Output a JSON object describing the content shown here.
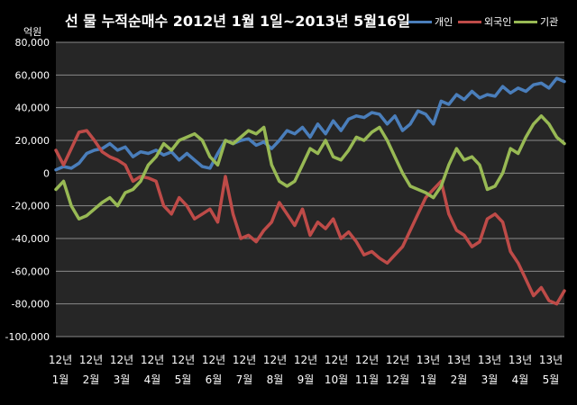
{
  "chart_data": {
    "type": "line",
    "title": "선 물 누적순매수 2012년 1월 1일~2013년 5월16일",
    "ylabel": "억원",
    "ylim": [
      -100000,
      80000
    ],
    "yticks": [
      80000,
      60000,
      40000,
      20000,
      0,
      -20000,
      -40000,
      -60000,
      -80000,
      -100000
    ],
    "ytick_labels": [
      "80,000",
      "60,000",
      "40,000",
      "20,000",
      "0",
      "-20,000",
      "-40,000",
      "-60,000",
      "-80,000",
      "-100,000"
    ],
    "x_tick_labels": [
      [
        "12년",
        "1월"
      ],
      [
        "12년",
        "2월"
      ],
      [
        "12년",
        "3월"
      ],
      [
        "12년",
        "4월"
      ],
      [
        "12년",
        "5월"
      ],
      [
        "12년",
        "6월"
      ],
      [
        "12년",
        "7월"
      ],
      [
        "12년",
        "8월"
      ],
      [
        "12년",
        "9월"
      ],
      [
        "12년",
        "10월"
      ],
      [
        "12년",
        "11월"
      ],
      [
        "12년",
        "12월"
      ],
      [
        "13년",
        "1월"
      ],
      [
        "13년",
        "2월"
      ],
      [
        "13년",
        "3월"
      ],
      [
        "13년",
        "4월"
      ],
      [
        "13년",
        "5월"
      ]
    ],
    "grid": true,
    "legend_position": "top-right",
    "x": [
      0,
      0.25,
      0.5,
      0.75,
      1,
      1.25,
      1.5,
      1.75,
      2,
      2.25,
      2.5,
      2.75,
      3,
      3.25,
      3.5,
      3.75,
      4,
      4.25,
      4.5,
      4.75,
      5,
      5.25,
      5.5,
      5.75,
      6,
      6.25,
      6.5,
      6.75,
      7,
      7.25,
      7.5,
      7.75,
      8,
      8.25,
      8.5,
      8.75,
      9,
      9.25,
      9.5,
      9.75,
      10,
      10.25,
      10.5,
      10.75,
      11,
      11.25,
      11.5,
      11.75,
      12,
      12.25,
      12.5,
      12.75,
      13,
      13.25,
      13.5,
      13.75,
      14,
      14.25,
      14.5,
      14.75,
      15,
      15.25,
      15.5,
      15.75,
      16,
      16.25,
      16.5
    ],
    "series": [
      {
        "name": "개인",
        "color": "#4a7ebb",
        "values": [
          2000,
          4000,
          3000,
          6000,
          12000,
          14000,
          15000,
          18000,
          14000,
          16000,
          10000,
          13000,
          12000,
          14000,
          11000,
          13000,
          8000,
          12000,
          8000,
          4000,
          3000,
          12000,
          20000,
          18000,
          20000,
          21000,
          17000,
          19000,
          15000,
          20000,
          26000,
          24000,
          28000,
          22000,
          30000,
          24000,
          32000,
          26000,
          33000,
          35000,
          34000,
          37000,
          36000,
          30000,
          35000,
          26000,
          30000,
          38000,
          36000,
          30000,
          44000,
          42000,
          48000,
          45000,
          50000,
          46000,
          48000,
          47000,
          53000,
          49000,
          52000,
          50000,
          54000,
          55000,
          52000,
          58000,
          56000
        ]
      },
      {
        "name": "외국인",
        "color": "#be4b48",
        "values": [
          14000,
          5000,
          15000,
          25000,
          26000,
          20000,
          13000,
          10000,
          8000,
          5000,
          -5000,
          -2000,
          -3000,
          -5000,
          -20000,
          -25000,
          -15000,
          -20000,
          -28000,
          -25000,
          -22000,
          -30000,
          -2000,
          -25000,
          -40000,
          -38000,
          -42000,
          -35000,
          -30000,
          -18000,
          -25000,
          -32000,
          -22000,
          -38000,
          -30000,
          -34000,
          -28000,
          -40000,
          -36000,
          -42000,
          -50000,
          -48000,
          -52000,
          -55000,
          -50000,
          -45000,
          -35000,
          -25000,
          -15000,
          -10000,
          -5000,
          -25000,
          -35000,
          -38000,
          -45000,
          -42000,
          -28000,
          -25000,
          -30000,
          -48000,
          -55000,
          -65000,
          -75000,
          -70000,
          -78000,
          -80000,
          -72000
        ]
      },
      {
        "name": "기관",
        "color": "#98b954",
        "values": [
          -10000,
          -5000,
          -20000,
          -28000,
          -26000,
          -22000,
          -18000,
          -15000,
          -20000,
          -12000,
          -10000,
          -5000,
          5000,
          10000,
          18000,
          14000,
          20000,
          22000,
          24000,
          20000,
          10000,
          5000,
          20000,
          18000,
          22000,
          26000,
          24000,
          28000,
          5000,
          -5000,
          -8000,
          -5000,
          5000,
          15000,
          12000,
          20000,
          10000,
          8000,
          14000,
          22000,
          20000,
          25000,
          28000,
          20000,
          10000,
          0,
          -8000,
          -10000,
          -12000,
          -15000,
          -8000,
          5000,
          15000,
          8000,
          10000,
          5000,
          -10000,
          -8000,
          0,
          15000,
          12000,
          22000,
          30000,
          35000,
          30000,
          22000,
          18000
        ]
      }
    ]
  }
}
